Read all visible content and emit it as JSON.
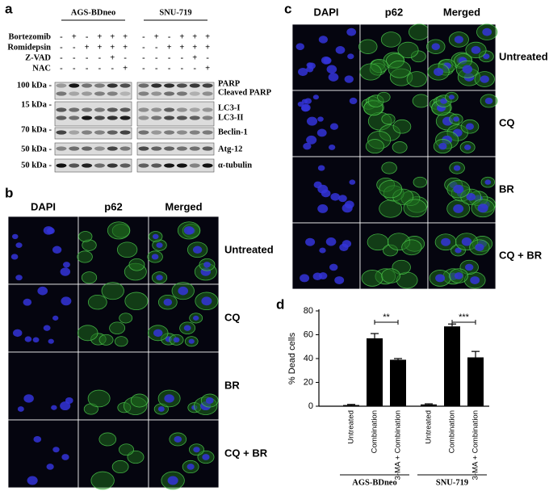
{
  "panel_a": {
    "label": "a",
    "groups": [
      "AGS-BDneo",
      "SNU-719"
    ],
    "treatments": [
      {
        "name": "Bortezomib",
        "signs": [
          "-",
          "+",
          "-",
          "+",
          "+",
          "+",
          "-",
          "+",
          "-",
          "+",
          "+",
          "+"
        ]
      },
      {
        "name": "Romidepsin",
        "signs": [
          "-",
          "-",
          "+",
          "+",
          "+",
          "+",
          "-",
          "-",
          "+",
          "+",
          "+",
          "+"
        ]
      },
      {
        "name": "Z-VAD",
        "signs": [
          "-",
          "-",
          "-",
          "-",
          "+",
          "-",
          "-",
          "-",
          "-",
          "-",
          "+",
          "-"
        ]
      },
      {
        "name": "NAC",
        "signs": [
          "-",
          "-",
          "-",
          "-",
          "-",
          "+",
          "-",
          "-",
          "-",
          "-",
          "-",
          "+"
        ]
      }
    ],
    "markers": [
      "100 kDa -",
      "15 kDa -",
      "70 kDa -",
      "50 kDa -",
      "50 kDa -"
    ],
    "proteins": [
      "PARP",
      "Cleaved PARP",
      "LC3-I",
      "LC3-II",
      "Beclin-1",
      "Atg-12",
      "α-tubulin"
    ]
  },
  "panel_b": {
    "label": "b",
    "columns": [
      "DAPI",
      "p62",
      "Merged"
    ],
    "rows": [
      "Untreated",
      "CQ",
      "BR",
      "CQ + BR"
    ]
  },
  "panel_c": {
    "label": "c",
    "columns": [
      "DAPI",
      "p62",
      "Merged"
    ],
    "rows": [
      "Untreated",
      "CQ",
      "BR",
      "CQ + BR"
    ]
  },
  "chart_data": {
    "type": "bar",
    "label": "d",
    "ylabel": "% Dead cells",
    "categories": [
      "Untreated",
      "Combination",
      "3-MA + Combination",
      "Untreated",
      "Combination",
      "3-MA + Combination"
    ],
    "groups": [
      "AGS-BDneo",
      "SNU-719"
    ],
    "values": [
      1,
      57,
      39,
      1.5,
      67,
      41
    ],
    "errors": [
      0.5,
      4,
      1,
      0.5,
      2,
      5
    ],
    "color": "#000000",
    "ylim": [
      0,
      80
    ],
    "yticks": [
      0,
      20,
      40,
      60,
      80
    ],
    "annotations": [
      "**",
      "***"
    ]
  }
}
